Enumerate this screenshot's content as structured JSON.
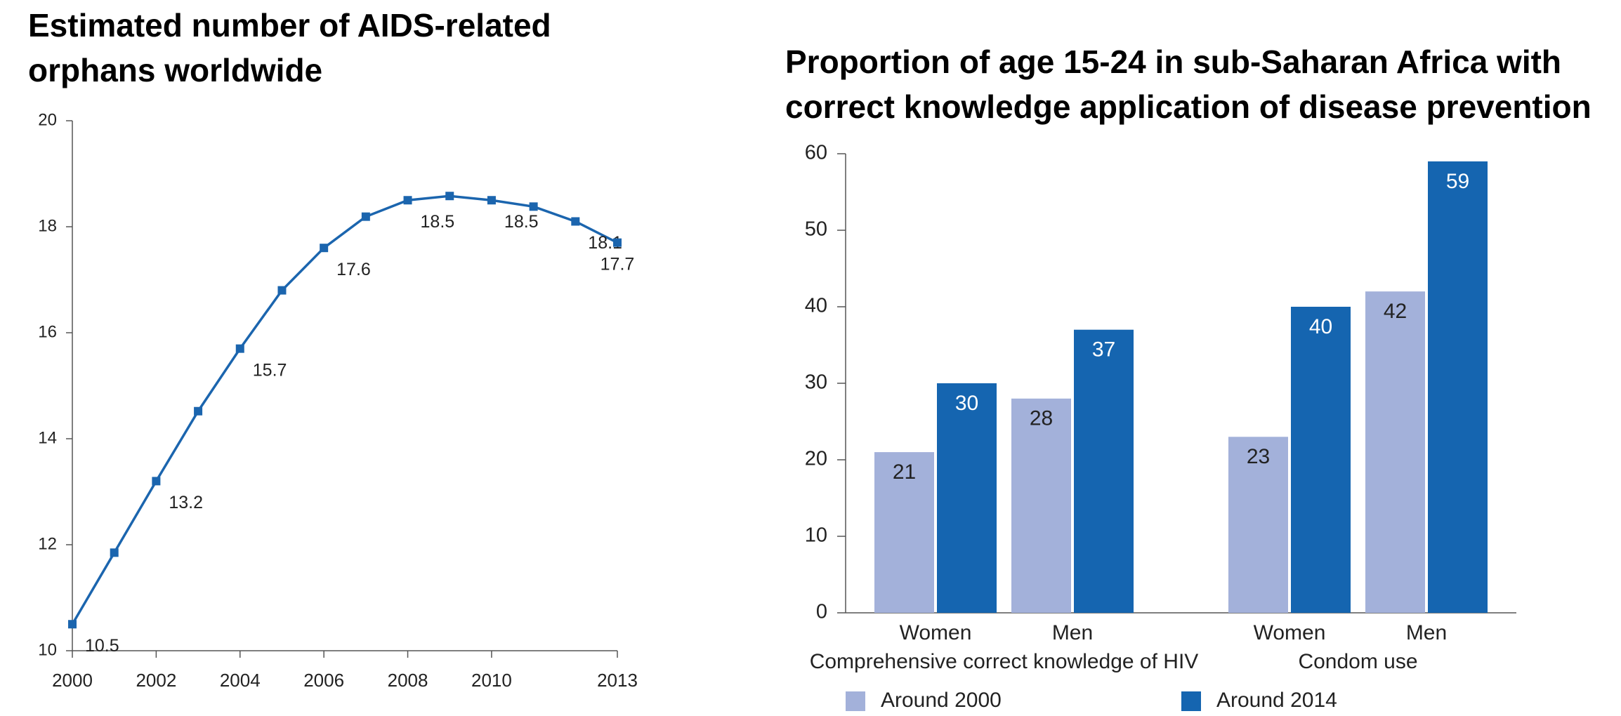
{
  "chart_data": [
    {
      "type": "line",
      "title": "Estimated number of AIDS-related orphans worldwide",
      "x": [
        2000,
        2001,
        2002,
        2003,
        2004,
        2005,
        2006,
        2007,
        2008,
        2009,
        2010,
        2011,
        2012,
        2013
      ],
      "values": [
        10.5,
        11.85,
        13.2,
        14.52,
        15.7,
        16.8,
        17.6,
        18.19,
        18.5,
        18.58,
        18.5,
        18.38,
        18.1,
        17.7
      ],
      "value_labels": [
        "10.5",
        null,
        "13.2",
        null,
        "15.7",
        null,
        "17.6",
        null,
        "18.5",
        null,
        "18.5",
        null,
        "18.1",
        "17.7"
      ],
      "color": "#1b65ae",
      "xlim": [
        2000,
        2013
      ],
      "xticks": [
        2000,
        2002,
        2004,
        2006,
        2008,
        2010,
        2013
      ],
      "ylim": [
        10,
        20
      ],
      "yticks": [
        10,
        12,
        14,
        16,
        18,
        20
      ]
    },
    {
      "type": "bar",
      "title": "Proportion of age 15-24 in sub-Saharan Africa with correct knowledge application of disease prevention",
      "categories": [
        "Women",
        "Men",
        "Women",
        "Men"
      ],
      "groups": [
        "Comprehensive correct knowledge of HIV",
        "Condom use"
      ],
      "series": [
        {
          "name": "Around 2000",
          "color": "#a3b1da",
          "values": [
            21,
            28,
            23,
            42
          ]
        },
        {
          "name": "Around 2014",
          "color": "#1565b0",
          "values": [
            30,
            37,
            40,
            59
          ]
        }
      ],
      "ylim": [
        0,
        60
      ],
      "yticks": [
        0,
        10,
        20,
        30,
        40,
        50,
        60
      ]
    }
  ]
}
